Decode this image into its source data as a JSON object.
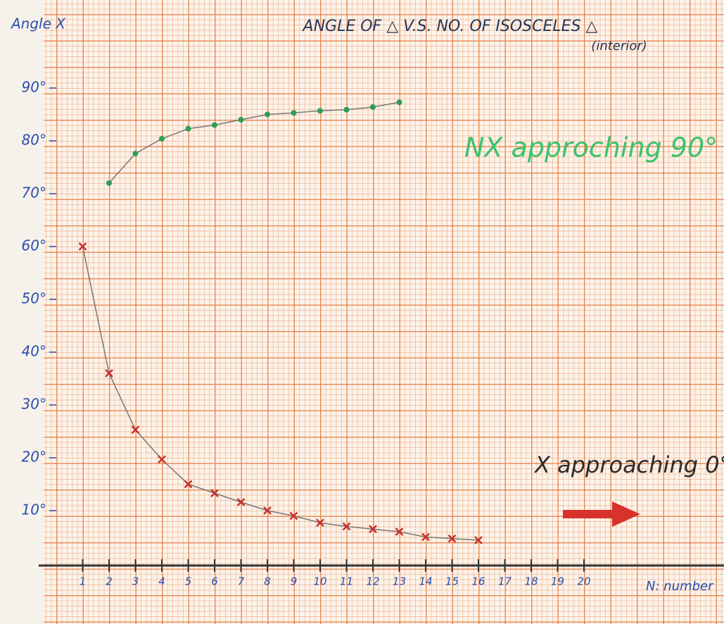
{
  "chart_data": {
    "type": "scatter",
    "title": "ANGLE OF △ V.S. NO. OF ISOSCELES △",
    "subtitle": "(interior)",
    "y_label": "Angle X",
    "x_label": "N: number",
    "annotations": [
      "NX approching 90°",
      "X approaching 0°"
    ],
    "xlim": [
      0,
      25
    ],
    "ylim": [
      0,
      95
    ],
    "xticks": [
      1,
      2,
      3,
      4,
      5,
      6,
      7,
      8,
      9,
      10,
      11,
      12,
      13,
      14,
      15,
      16,
      17,
      18,
      19,
      20
    ],
    "yticks": [
      {
        "value": 10,
        "label": "10°"
      },
      {
        "value": 20,
        "label": "20°"
      },
      {
        "value": 30,
        "label": "30°"
      },
      {
        "value": 40,
        "label": "40°"
      },
      {
        "value": 50,
        "label": "50°"
      },
      {
        "value": 60,
        "label": "60°"
      },
      {
        "value": 70,
        "label": "70°"
      },
      {
        "value": 80,
        "label": "80°"
      },
      {
        "value": 90,
        "label": "90°"
      }
    ],
    "series": [
      {
        "color": "#c8302a",
        "marker": "cross",
        "x": [
          1,
          2,
          3,
          4,
          5,
          6,
          7,
          8,
          9,
          10,
          11,
          12,
          13,
          14,
          15,
          16
        ],
        "values": [
          60,
          36,
          25.3,
          19.7,
          15,
          13.3,
          11.6,
          10,
          9,
          7.7,
          7,
          6.5,
          6,
          5,
          4.7,
          4.4
        ]
      },
      {
        "color": "#2e9e55",
        "marker": "dot",
        "x": [
          2,
          3,
          4,
          5,
          6,
          7,
          8,
          9,
          10,
          11,
          12,
          13
        ],
        "values": [
          72,
          77.6,
          80.4,
          82.3,
          83,
          84,
          85,
          85.3,
          85.7,
          85.9,
          86.4,
          87.3
        ]
      }
    ]
  }
}
